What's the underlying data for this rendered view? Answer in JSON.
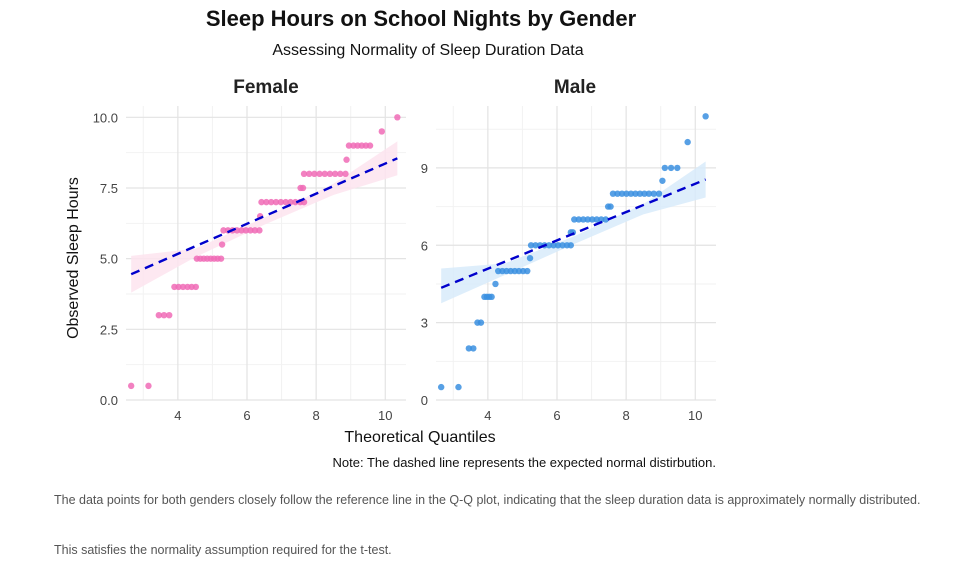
{
  "chart_data": {
    "type": "scatter",
    "title": "Sleep Hours on School Nights by Gender",
    "subtitle": "Assessing Normality of Sleep Duration Data",
    "xlabel": "Theoretical Quantiles",
    "ylabel": "Observed Sleep Hours",
    "note": "Note: The dashed line represents the expected normal distirbution.",
    "grid": true,
    "legend": "none",
    "colors": {
      "reference_line": "#0000cc",
      "female": "#f06bb6",
      "male": "#3a8fe0",
      "female_band": "#fde4ee",
      "male_band": "#d8ebfa"
    },
    "panels": [
      {
        "name": "Female",
        "xlim": [
          2.5,
          10.6
        ],
        "ylim": [
          0,
          10.4
        ],
        "x_ticks": [
          4,
          6,
          8,
          10
        ],
        "y_ticks": [
          0.0,
          2.5,
          5.0,
          7.5,
          10.0
        ],
        "y_tick_labels": [
          "0.0",
          "2.5",
          "5.0",
          "7.5",
          "10.0"
        ],
        "reference_line": {
          "x": [
            2.65,
            10.35
          ],
          "y": [
            4.45,
            8.55
          ]
        },
        "band": {
          "x": [
            2.65,
            4.5,
            6.5,
            8.5,
            10.35
          ],
          "lower": [
            3.8,
            5.05,
            6.2,
            7.25,
            7.95
          ],
          "upper": [
            5.1,
            5.35,
            6.45,
            7.65,
            9.15
          ]
        },
        "points": [
          {
            "x": 2.65,
            "y": 0.5
          },
          {
            "x": 3.15,
            "y": 0.5
          },
          {
            "x": 3.45,
            "y": 3
          },
          {
            "x": 3.6,
            "y": 3
          },
          {
            "x": 3.75,
            "y": 3
          },
          {
            "x": 3.9,
            "y": 4
          },
          {
            "x": 4.02,
            "y": 4
          },
          {
            "x": 4.15,
            "y": 4
          },
          {
            "x": 4.28,
            "y": 4
          },
          {
            "x": 4.4,
            "y": 4
          },
          {
            "x": 4.52,
            "y": 4
          },
          {
            "x": 5.28,
            "y": 5.5
          },
          {
            "x": 4.55,
            "y": 5
          },
          {
            "x": 4.65,
            "y": 5
          },
          {
            "x": 4.75,
            "y": 5
          },
          {
            "x": 4.85,
            "y": 5
          },
          {
            "x": 4.95,
            "y": 5
          },
          {
            "x": 5.05,
            "y": 5
          },
          {
            "x": 5.15,
            "y": 5
          },
          {
            "x": 5.25,
            "y": 5
          },
          {
            "x": 5.32,
            "y": 6
          },
          {
            "x": 5.45,
            "y": 6
          },
          {
            "x": 5.58,
            "y": 6
          },
          {
            "x": 5.71,
            "y": 6
          },
          {
            "x": 5.84,
            "y": 6
          },
          {
            "x": 5.97,
            "y": 6
          },
          {
            "x": 6.1,
            "y": 6
          },
          {
            "x": 6.23,
            "y": 6
          },
          {
            "x": 6.36,
            "y": 6
          },
          {
            "x": 6.38,
            "y": 6.5
          },
          {
            "x": 6.42,
            "y": 7
          },
          {
            "x": 6.56,
            "y": 7
          },
          {
            "x": 6.7,
            "y": 7
          },
          {
            "x": 6.84,
            "y": 7
          },
          {
            "x": 6.98,
            "y": 7
          },
          {
            "x": 7.12,
            "y": 7
          },
          {
            "x": 7.26,
            "y": 7
          },
          {
            "x": 7.4,
            "y": 7
          },
          {
            "x": 7.54,
            "y": 7
          },
          {
            "x": 7.65,
            "y": 7
          },
          {
            "x": 7.55,
            "y": 7.5
          },
          {
            "x": 7.62,
            "y": 7.5
          },
          {
            "x": 7.65,
            "y": 8
          },
          {
            "x": 7.8,
            "y": 8
          },
          {
            "x": 7.95,
            "y": 8
          },
          {
            "x": 8.1,
            "y": 8
          },
          {
            "x": 8.25,
            "y": 8
          },
          {
            "x": 8.4,
            "y": 8
          },
          {
            "x": 8.55,
            "y": 8
          },
          {
            "x": 8.7,
            "y": 8
          },
          {
            "x": 8.85,
            "y": 8
          },
          {
            "x": 8.88,
            "y": 8.5
          },
          {
            "x": 8.95,
            "y": 9
          },
          {
            "x": 9.08,
            "y": 9
          },
          {
            "x": 9.2,
            "y": 9
          },
          {
            "x": 9.32,
            "y": 9
          },
          {
            "x": 9.44,
            "y": 9
          },
          {
            "x": 9.56,
            "y": 9
          },
          {
            "x": 9.9,
            "y": 9.5
          },
          {
            "x": 10.35,
            "y": 10
          }
        ]
      },
      {
        "name": "Male",
        "xlim": [
          2.5,
          10.6
        ],
        "ylim": [
          0,
          11.4
        ],
        "x_ticks": [
          4,
          6,
          8,
          10
        ],
        "y_ticks": [
          0,
          3,
          6,
          9
        ],
        "y_tick_labels": [
          "0",
          "3",
          "6",
          "9"
        ],
        "reference_line": {
          "x": [
            2.65,
            10.3
          ],
          "y": [
            4.35,
            8.55
          ]
        },
        "band": {
          "x": [
            2.65,
            4.5,
            6.5,
            8.5,
            10.3
          ],
          "lower": [
            3.75,
            4.85,
            6.05,
            7.2,
            7.85
          ],
          "upper": [
            5.1,
            5.3,
            6.35,
            7.6,
            9.25
          ]
        },
        "points": [
          {
            "x": 2.65,
            "y": 0.5
          },
          {
            "x": 3.15,
            "y": 0.5
          },
          {
            "x": 3.45,
            "y": 2
          },
          {
            "x": 3.58,
            "y": 2
          },
          {
            "x": 3.7,
            "y": 3
          },
          {
            "x": 3.8,
            "y": 3
          },
          {
            "x": 3.9,
            "y": 4
          },
          {
            "x": 3.97,
            "y": 4
          },
          {
            "x": 4.04,
            "y": 4
          },
          {
            "x": 4.11,
            "y": 4
          },
          {
            "x": 4.22,
            "y": 4.5
          },
          {
            "x": 4.3,
            "y": 5
          },
          {
            "x": 4.42,
            "y": 5
          },
          {
            "x": 4.54,
            "y": 5
          },
          {
            "x": 4.66,
            "y": 5
          },
          {
            "x": 4.78,
            "y": 5
          },
          {
            "x": 4.9,
            "y": 5
          },
          {
            "x": 5.02,
            "y": 5
          },
          {
            "x": 5.14,
            "y": 5
          },
          {
            "x": 5.22,
            "y": 5.5
          },
          {
            "x": 5.25,
            "y": 6
          },
          {
            "x": 5.38,
            "y": 6
          },
          {
            "x": 5.51,
            "y": 6
          },
          {
            "x": 5.64,
            "y": 6
          },
          {
            "x": 5.77,
            "y": 6
          },
          {
            "x": 5.9,
            "y": 6
          },
          {
            "x": 6.03,
            "y": 6
          },
          {
            "x": 6.16,
            "y": 6
          },
          {
            "x": 6.29,
            "y": 6
          },
          {
            "x": 6.4,
            "y": 6
          },
          {
            "x": 6.4,
            "y": 6.5
          },
          {
            "x": 6.46,
            "y": 6.5
          },
          {
            "x": 6.5,
            "y": 7
          },
          {
            "x": 6.63,
            "y": 7
          },
          {
            "x": 6.76,
            "y": 7
          },
          {
            "x": 6.89,
            "y": 7
          },
          {
            "x": 7.02,
            "y": 7
          },
          {
            "x": 7.15,
            "y": 7
          },
          {
            "x": 7.28,
            "y": 7
          },
          {
            "x": 7.41,
            "y": 7
          },
          {
            "x": 7.48,
            "y": 7.5
          },
          {
            "x": 7.55,
            "y": 7.5
          },
          {
            "x": 7.62,
            "y": 8
          },
          {
            "x": 7.75,
            "y": 8
          },
          {
            "x": 7.88,
            "y": 8
          },
          {
            "x": 8.01,
            "y": 8
          },
          {
            "x": 8.14,
            "y": 8
          },
          {
            "x": 8.27,
            "y": 8
          },
          {
            "x": 8.4,
            "y": 8
          },
          {
            "x": 8.53,
            "y": 8
          },
          {
            "x": 8.66,
            "y": 8
          },
          {
            "x": 8.8,
            "y": 8
          },
          {
            "x": 8.95,
            "y": 8
          },
          {
            "x": 9.05,
            "y": 8.5
          },
          {
            "x": 9.12,
            "y": 9
          },
          {
            "x": 9.3,
            "y": 9
          },
          {
            "x": 9.48,
            "y": 9
          },
          {
            "x": 9.78,
            "y": 10
          },
          {
            "x": 10.3,
            "y": 11
          }
        ]
      }
    ]
  },
  "caption": {
    "line1": "The data points for both genders closely follow the reference line in the Q-Q plot, indicating that the sleep duration data is approximately normally distributed.",
    "line2": "This satisfies the normality assumption required for the t-test."
  }
}
